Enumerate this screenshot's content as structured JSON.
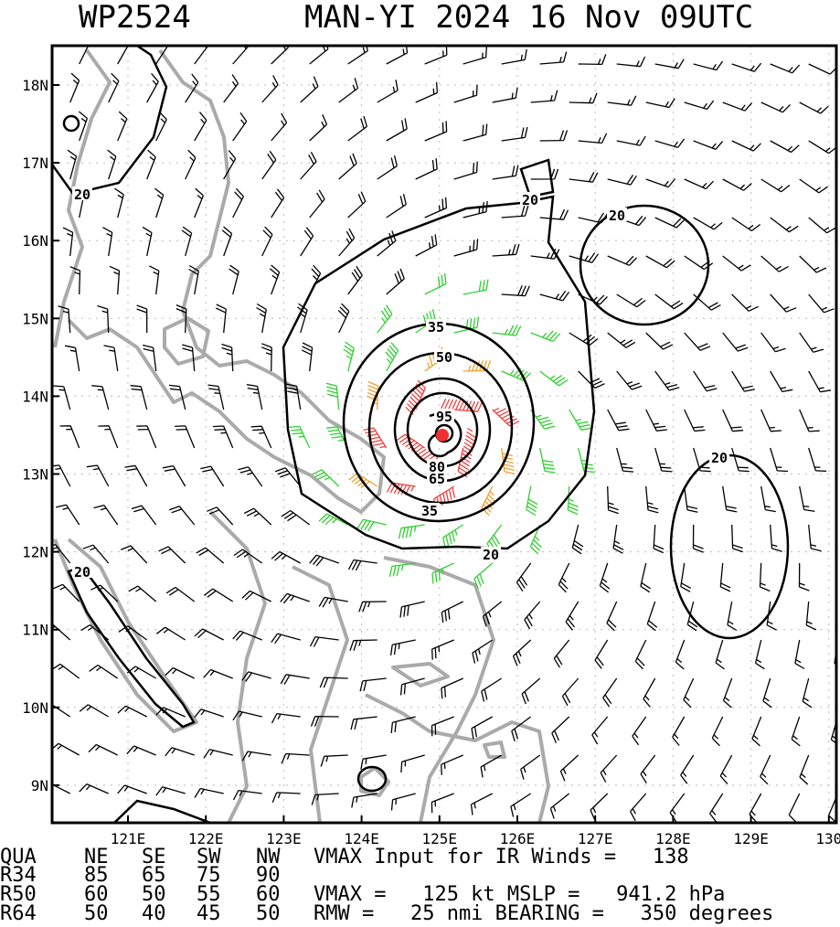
{
  "header": {
    "storm_id": "WP2524",
    "title": "MAN-YI 2024 16 Nov 09UTC"
  },
  "map": {
    "lat_labels": [
      "18N",
      "17N",
      "16N",
      "15N",
      "14N",
      "13N",
      "12N",
      "11N",
      "10N",
      "9N"
    ],
    "lon_labels": [
      "121E",
      "122E",
      "123E",
      "124E",
      "125E",
      "126E",
      "127E",
      "128E",
      "129E",
      "130"
    ],
    "contour_labels": [
      "20",
      "20",
      "20",
      "20",
      "20",
      "20",
      "35",
      "35",
      "50",
      "65",
      "80",
      "95"
    ]
  },
  "table": {
    "header": [
      "QUA",
      "NE",
      "SE",
      "SW",
      "NW"
    ],
    "rows": [
      [
        "R34",
        "85",
        "65",
        "75",
        "90"
      ],
      [
        "R50",
        "60",
        "50",
        "55",
        "60"
      ],
      [
        "R64",
        "50",
        "40",
        "45",
        "50"
      ]
    ]
  },
  "info": [
    "VMAX Input for IR Winds =   138",
    "VMAX =   125 kt MSLP =   941.2 hPa",
    "RMW =   25 nmi BEARING =   350 degrees"
  ]
}
